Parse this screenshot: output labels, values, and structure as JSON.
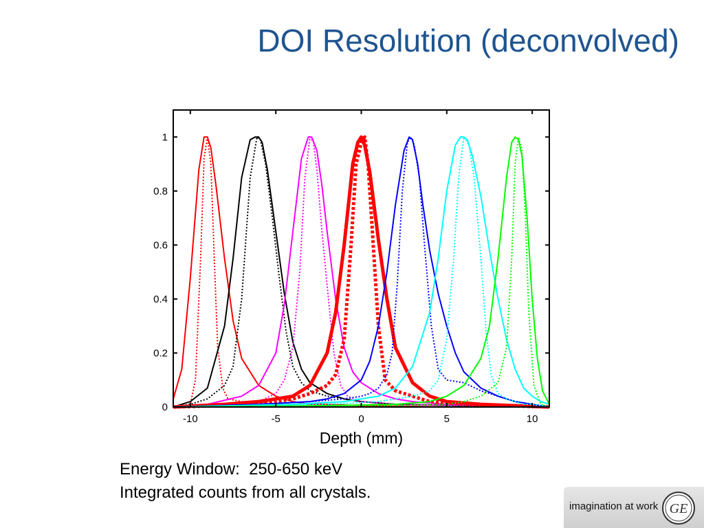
{
  "slide": {
    "title": "DOI Resolution (deconvolved)",
    "caption_line1": "Energy Window:  250-650 keV",
    "caption_line2": "Integrated counts from all crystals."
  },
  "logo": {
    "tagline": "imagination at work",
    "monogram": "GE"
  },
  "chart_data": {
    "type": "line",
    "title": "",
    "xlabel": "Depth (mm)",
    "ylabel": "",
    "xlim": [
      -11,
      11
    ],
    "ylim": [
      0,
      1.1
    ],
    "xticks": [
      -10,
      -5,
      0,
      5,
      10
    ],
    "xtick_labels": [
      "-10",
      "-5",
      "0",
      "5",
      "10"
    ],
    "yticks": [
      0,
      0.2,
      0.4,
      0.6,
      0.8,
      1
    ],
    "ytick_labels": [
      "0",
      "0.2",
      "0.4",
      "0.6",
      "0.8",
      "1"
    ],
    "grid": false,
    "legend": "none",
    "series": [
      {
        "color": "#ff0000",
        "style": "solid",
        "width": 2,
        "x": [
          -11,
          -10.5,
          -10,
          -9.5,
          -9.2,
          -9,
          -8.8,
          -8.5,
          -8,
          -7.5,
          -7,
          -6,
          -5,
          -4,
          -3,
          -2,
          0,
          5,
          11
        ],
        "y": [
          0.03,
          0.14,
          0.48,
          0.88,
          1.0,
          1.0,
          0.96,
          0.82,
          0.55,
          0.32,
          0.18,
          0.08,
          0.04,
          0.02,
          0.01,
          0.01,
          0.005,
          0,
          0
        ]
      },
      {
        "color": "#ff0000",
        "style": "dotted",
        "width": 2,
        "x": [
          -11,
          -10,
          -9.7,
          -9.4,
          -9.2,
          -9,
          -8.8,
          -8.6,
          -8.4,
          -8.1,
          -7.8,
          -7,
          -6,
          -5,
          -3,
          0,
          11
        ],
        "y": [
          0,
          0.01,
          0.1,
          0.55,
          0.92,
          1.0,
          0.9,
          0.55,
          0.22,
          0.07,
          0.03,
          0.02,
          0.02,
          0.01,
          0.005,
          0,
          0
        ]
      },
      {
        "color": "#000000",
        "style": "solid",
        "width": 2,
        "x": [
          -11,
          -10,
          -9,
          -8,
          -7.5,
          -7,
          -6.5,
          -6.2,
          -6,
          -5.8,
          -5.5,
          -5,
          -4.5,
          -4,
          -3.5,
          -3,
          -2,
          -1,
          0,
          2,
          11
        ],
        "y": [
          0,
          0.02,
          0.07,
          0.3,
          0.55,
          0.85,
          0.99,
          1.0,
          1.0,
          0.98,
          0.88,
          0.65,
          0.42,
          0.24,
          0.14,
          0.09,
          0.05,
          0.03,
          0.02,
          0.01,
          0
        ]
      },
      {
        "color": "#000000",
        "style": "dotted",
        "width": 2,
        "x": [
          -11,
          -10,
          -9,
          -8,
          -7.5,
          -7,
          -6.5,
          -6.1,
          -5.9,
          -5.6,
          -5.2,
          -4.8,
          -4.4,
          -4,
          -3.5,
          -3,
          -2,
          -1,
          0,
          2,
          11
        ],
        "y": [
          0,
          0.01,
          0.03,
          0.08,
          0.15,
          0.4,
          0.85,
          1.0,
          0.99,
          0.9,
          0.7,
          0.48,
          0.28,
          0.15,
          0.09,
          0.06,
          0.04,
          0.03,
          0.02,
          0.01,
          0
        ]
      },
      {
        "color": "#ff00ff",
        "style": "solid",
        "width": 2,
        "x": [
          -11,
          -9,
          -7,
          -6,
          -5,
          -4.5,
          -4,
          -3.5,
          -3.1,
          -2.9,
          -2.6,
          -2.3,
          -2,
          -1.5,
          -1,
          -0.5,
          0,
          1,
          2,
          3,
          5,
          11
        ],
        "y": [
          0,
          0.01,
          0.04,
          0.08,
          0.2,
          0.38,
          0.65,
          0.92,
          1.0,
          1.0,
          0.95,
          0.82,
          0.65,
          0.4,
          0.22,
          0.13,
          0.09,
          0.05,
          0.03,
          0.02,
          0.01,
          0
        ]
      },
      {
        "color": "#ff00ff",
        "style": "dotted",
        "width": 2,
        "x": [
          -11,
          -8,
          -6,
          -5,
          -4.5,
          -4,
          -3.6,
          -3.3,
          -3,
          -2.8,
          -2.6,
          -2.3,
          -2,
          -1.6,
          -1.2,
          -0.8,
          0,
          2,
          11
        ],
        "y": [
          0,
          0.01,
          0.02,
          0.05,
          0.1,
          0.22,
          0.5,
          0.85,
          1.0,
          0.98,
          0.88,
          0.65,
          0.45,
          0.2,
          0.08,
          0.04,
          0.02,
          0.01,
          0
        ]
      },
      {
        "color": "#ff0000",
        "style": "solid",
        "width": 5,
        "x": [
          -11,
          -8,
          -6,
          -4,
          -3,
          -2,
          -1.5,
          -1,
          -0.5,
          -0.2,
          0,
          0.2,
          0.5,
          1,
          1.5,
          2,
          3,
          4,
          5,
          7,
          11
        ],
        "y": [
          0,
          0.01,
          0.02,
          0.04,
          0.08,
          0.2,
          0.35,
          0.6,
          0.9,
          0.98,
          1.0,
          0.97,
          0.87,
          0.62,
          0.4,
          0.22,
          0.09,
          0.04,
          0.02,
          0.01,
          0
        ]
      },
      {
        "color": "#ff0000",
        "style": "dotted",
        "width": 5,
        "x": [
          -11,
          -6,
          -4,
          -3,
          -2,
          -1.5,
          -1,
          -0.6,
          -0.3,
          0,
          0.2,
          0.4,
          0.7,
          1,
          1.4,
          2,
          3,
          4,
          6,
          11
        ],
        "y": [
          0,
          0.01,
          0.03,
          0.05,
          0.08,
          0.12,
          0.25,
          0.6,
          0.9,
          0.98,
          1.0,
          0.9,
          0.6,
          0.3,
          0.1,
          0.06,
          0.04,
          0.02,
          0.01,
          0
        ]
      },
      {
        "color": "#0000ff",
        "style": "solid",
        "width": 2,
        "x": [
          -11,
          -6,
          -3,
          -2,
          -1,
          0,
          0.5,
          1,
          1.5,
          2,
          2.5,
          2.8,
          3,
          3.3,
          3.6,
          4,
          4.5,
          5,
          5.5,
          6,
          7,
          8,
          9,
          10,
          11
        ],
        "y": [
          0,
          0.01,
          0.02,
          0.03,
          0.05,
          0.1,
          0.17,
          0.3,
          0.5,
          0.75,
          0.95,
          1.0,
          0.99,
          0.9,
          0.75,
          0.58,
          0.42,
          0.3,
          0.2,
          0.13,
          0.07,
          0.04,
          0.02,
          0.01,
          0
        ]
      },
      {
        "color": "#0000ff",
        "style": "dotted",
        "width": 2,
        "x": [
          -11,
          -6,
          -3,
          -1,
          0,
          0.5,
          1,
          1.5,
          1.8,
          2.1,
          2.4,
          2.7,
          2.9,
          3.1,
          3.4,
          3.7,
          4.1,
          4.5,
          5,
          6,
          7,
          8,
          9,
          10,
          11
        ],
        "y": [
          0,
          0.01,
          0.02,
          0.03,
          0.04,
          0.05,
          0.07,
          0.12,
          0.2,
          0.45,
          0.8,
          0.98,
          1.0,
          0.97,
          0.85,
          0.6,
          0.3,
          0.14,
          0.1,
          0.09,
          0.06,
          0.04,
          0.02,
          0.01,
          0
        ]
      },
      {
        "color": "#00ffff",
        "style": "solid",
        "width": 2,
        "x": [
          -11,
          -4,
          -1,
          1,
          2,
          3,
          4,
          4.5,
          5,
          5.5,
          5.8,
          6,
          6.2,
          6.5,
          7,
          7.5,
          8,
          8.5,
          9,
          9.5,
          10,
          10.5,
          11
        ],
        "y": [
          0,
          0.01,
          0.02,
          0.04,
          0.07,
          0.15,
          0.35,
          0.55,
          0.8,
          0.97,
          1.0,
          1.0,
          0.99,
          0.93,
          0.78,
          0.58,
          0.4,
          0.25,
          0.14,
          0.07,
          0.04,
          0.02,
          0.01
        ]
      },
      {
        "color": "#00ffff",
        "style": "dotted",
        "width": 2,
        "x": [
          -11,
          -2,
          1,
          3,
          4,
          4.5,
          5,
          5.4,
          5.7,
          6,
          6.3,
          6.6,
          7,
          7.3,
          7.6,
          8,
          8.5,
          9,
          9.5,
          10,
          11
        ],
        "y": [
          0,
          0.01,
          0.02,
          0.04,
          0.06,
          0.1,
          0.25,
          0.55,
          0.85,
          1.0,
          0.97,
          0.85,
          0.55,
          0.28,
          0.12,
          0.05,
          0.03,
          0.02,
          0.01,
          0.01,
          0
        ]
      },
      {
        "color": "#00ff00",
        "style": "solid",
        "width": 2,
        "x": [
          -11,
          -2,
          2,
          4,
          5,
          6,
          7,
          7.5,
          8,
          8.5,
          8.8,
          9,
          9.2,
          9.4,
          9.7,
          10,
          10.3,
          10.6,
          11
        ],
        "y": [
          0,
          0.005,
          0.01,
          0.02,
          0.04,
          0.08,
          0.18,
          0.3,
          0.55,
          0.85,
          0.98,
          1.0,
          0.99,
          0.93,
          0.7,
          0.4,
          0.18,
          0.06,
          0.01
        ]
      },
      {
        "color": "#00ff00",
        "style": "dotted",
        "width": 2,
        "x": [
          -11,
          2,
          5,
          6,
          7,
          8,
          8.5,
          8.8,
          9,
          9.2,
          9.4,
          9.6,
          9.8,
          10.1,
          10.5,
          11
        ],
        "y": [
          0,
          0.005,
          0.01,
          0.02,
          0.04,
          0.09,
          0.22,
          0.55,
          0.9,
          1.0,
          0.95,
          0.7,
          0.35,
          0.08,
          0.01,
          0
        ]
      }
    ]
  }
}
